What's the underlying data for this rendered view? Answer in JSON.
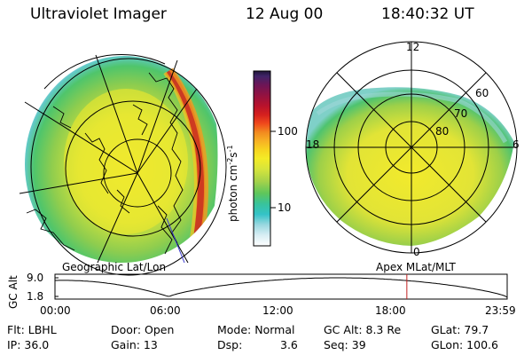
{
  "header": {
    "instrument": "Ultraviolet Imager",
    "date": "12 Aug 00",
    "time": "18:40:32 UT"
  },
  "colorbar": {
    "unit_label": "photon cm-2s-1",
    "ticks": [
      "100",
      "10"
    ],
    "colors": [
      "#ffffff",
      "#d9eef4",
      "#9ad8e0",
      "#34c3c8",
      "#38c39b",
      "#5ec65b",
      "#a6d24a",
      "#d7e53c",
      "#f4eb26",
      "#f7d420",
      "#f7b124",
      "#f28a1f",
      "#f0491c",
      "#d5201e",
      "#b9122c",
      "#941240",
      "#6d1556",
      "#402468",
      "#1f1538"
    ]
  },
  "panels": {
    "geo_label": "Geographic Lat/Lon",
    "apex_label": "Apex  MLat/MLT",
    "mlt_labels": {
      "top": "12",
      "left": "18",
      "right": "6",
      "bottom": "0"
    },
    "mlat_labels": [
      "60",
      "70",
      "80"
    ]
  },
  "altitude_plot": {
    "ylabel": "GC Alt",
    "yticks": [
      "9.0",
      "1.8"
    ],
    "xticks": [
      "00:00",
      "06:00",
      "12:00",
      "18:00",
      "23:59"
    ],
    "curve_color": "#000000",
    "marker_color": "#c02020",
    "marker_time_hours": 18.675
  },
  "info": {
    "col1": [
      "Flt: LBHL",
      "IP: 36.0"
    ],
    "col2": [
      "Door: Open",
      "Gain: 13"
    ],
    "col3a": [
      "Mode: Normal",
      "Dsp:"
    ],
    "col3b": [
      "",
      "3.6"
    ],
    "col4": [
      "GC Alt: 8.3 Re",
      "Seq: 39"
    ],
    "col5": [
      "GLat:  79.7",
      "GLon: 100.6"
    ]
  }
}
